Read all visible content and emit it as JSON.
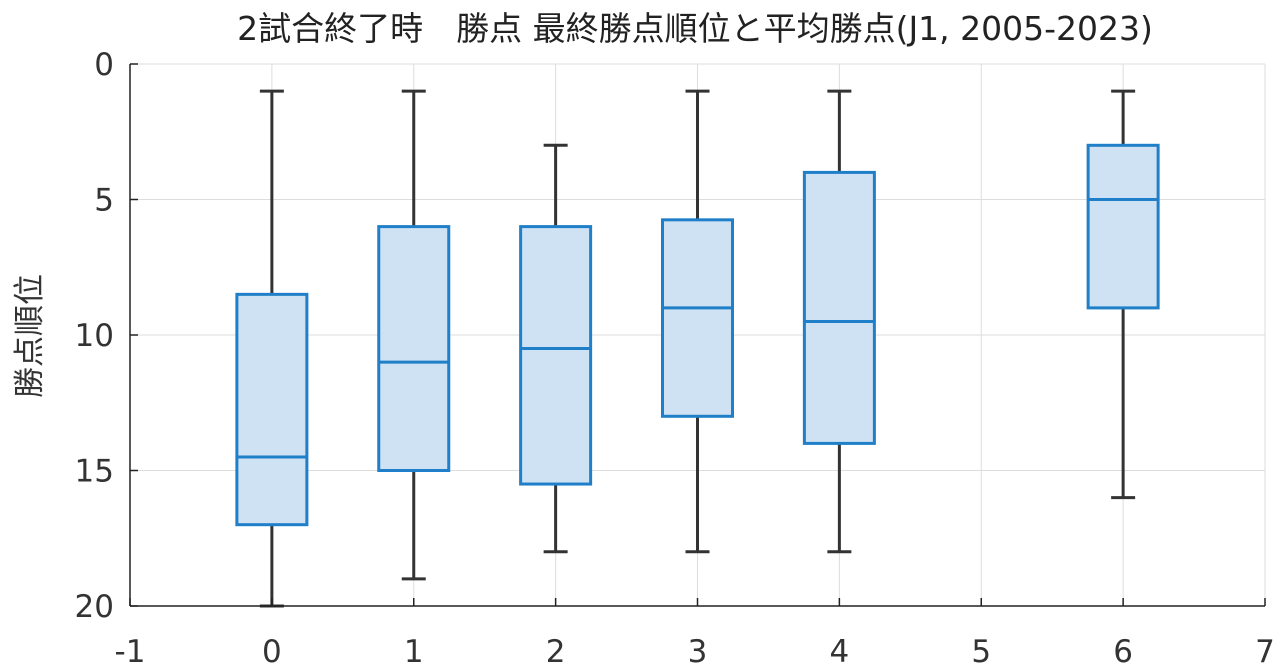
{
  "chart_data": {
    "type": "box",
    "title": "2試合終了時　勝点 最終勝点順位と平均勝点(J1, 2005-2023)",
    "xlabel": "",
    "ylabel": "勝点順位",
    "xlim": [
      -1,
      7
    ],
    "ylim": [
      0,
      20
    ],
    "y_reversed": true,
    "grid": true,
    "x_ticks": [
      -1,
      0,
      1,
      2,
      3,
      4,
      5,
      6,
      7
    ],
    "y_ticks": [
      0,
      5,
      10,
      15,
      20
    ],
    "boxes": [
      {
        "x": 0,
        "whisker_low": 1,
        "q1": 8.5,
        "median": 14.5,
        "q3": 17,
        "whisker_high": 20
      },
      {
        "x": 1,
        "whisker_low": 1,
        "q1": 6,
        "median": 11,
        "q3": 15,
        "whisker_high": 19
      },
      {
        "x": 2,
        "whisker_low": 3,
        "q1": 6,
        "median": 10.5,
        "q3": 15.5,
        "whisker_high": 18
      },
      {
        "x": 3,
        "whisker_low": 1,
        "q1": 5.75,
        "median": 9,
        "q3": 13,
        "whisker_high": 18
      },
      {
        "x": 4,
        "whisker_low": 1,
        "q1": 4,
        "median": 9.5,
        "q3": 14,
        "whisker_high": 18
      },
      {
        "x": 6,
        "whisker_low": 1,
        "q1": 3,
        "median": 5,
        "q3": 9,
        "whisker_high": 16
      }
    ],
    "colors": {
      "box_edge": "#1f7fc8",
      "box_fill": "#cfe2f3",
      "whisker": "#333333",
      "grid": "#dddddd",
      "axis": "#222222"
    }
  }
}
